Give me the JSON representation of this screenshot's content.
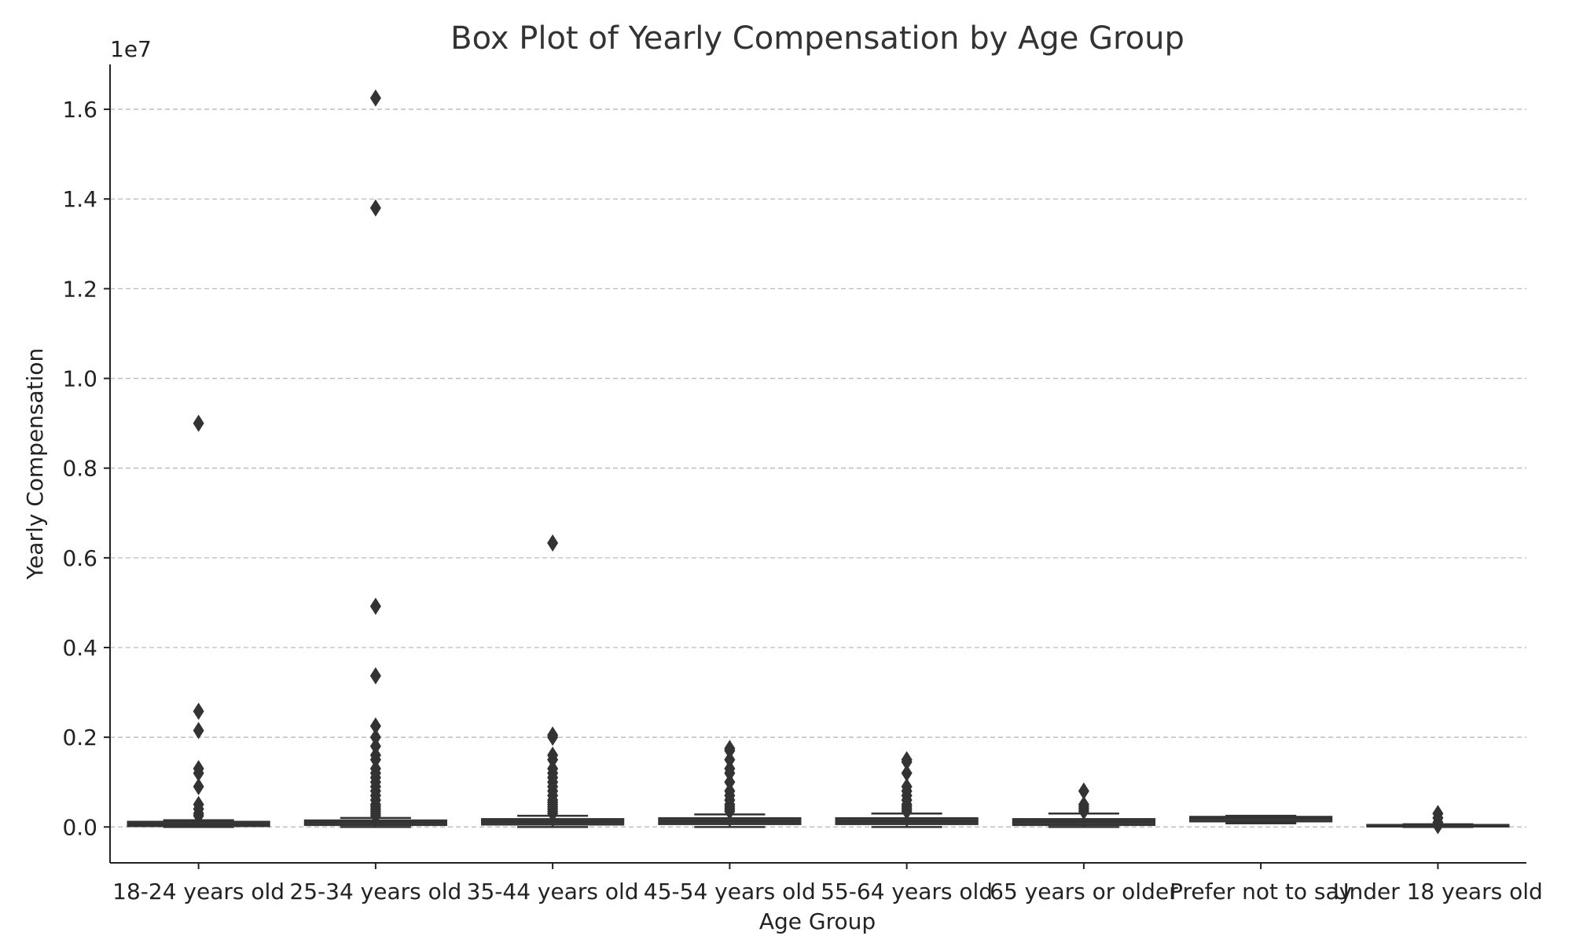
{
  "chart_data": {
    "type": "box",
    "title": "Box Plot of Yearly Compensation by Age Group",
    "xlabel": "Age Group",
    "ylabel": "Yearly Compensation",
    "y_offset_label": "1e7",
    "ylim": [
      -800000,
      17000000
    ],
    "yticks": [
      0,
      2000000,
      4000000,
      6000000,
      8000000,
      10000000,
      12000000,
      14000000,
      16000000
    ],
    "ytick_labels": [
      "0.0",
      "0.2",
      "0.4",
      "0.6",
      "0.8",
      "1.0",
      "1.2",
      "1.4",
      "1.6"
    ],
    "grid": "y",
    "colors": {
      "box": "#3a3a3a",
      "line": "#333333",
      "grid": "#bbbbbb"
    },
    "categories": [
      "18-24 years old",
      "25-34 years old",
      "35-44 years old",
      "45-54 years old",
      "55-64 years old",
      "65 years or older",
      "Prefer not to say",
      "Under 18 years old"
    ],
    "boxes": [
      {
        "whislo": 0,
        "q1": 15000,
        "med": 60000,
        "q3": 120000,
        "whishi": 150000,
        "fliers": [
          9000000,
          2580000,
          2150000,
          1300000,
          1200000,
          900000,
          500000,
          400000,
          300000,
          250000
        ]
      },
      {
        "whislo": 0,
        "q1": 40000,
        "med": 100000,
        "q3": 150000,
        "whishi": 200000,
        "fliers": [
          16250000,
          13800000,
          4920000,
          3370000,
          2250000,
          2000000,
          1800000,
          1600000,
          1500000,
          1300000,
          1200000,
          1100000,
          1000000,
          900000,
          800000,
          700000,
          600000,
          500000,
          450000,
          400000,
          350000,
          300000,
          250000
        ]
      },
      {
        "whislo": 0,
        "q1": 50000,
        "med": 120000,
        "q3": 180000,
        "whishi": 250000,
        "fliers": [
          6330000,
          2050000,
          2000000,
          1600000,
          1500000,
          1300000,
          1200000,
          1100000,
          1000000,
          900000,
          800000,
          700000,
          600000,
          550000,
          500000,
          450000,
          400000,
          350000,
          300000
        ]
      },
      {
        "whislo": 0,
        "q1": 60000,
        "med": 130000,
        "q3": 200000,
        "whishi": 280000,
        "fliers": [
          1750000,
          1700000,
          1500000,
          1300000,
          1200000,
          1000000,
          800000,
          700000,
          600000,
          500000,
          450000,
          400000,
          350000
        ]
      },
      {
        "whislo": 0,
        "q1": 60000,
        "med": 130000,
        "q3": 200000,
        "whishi": 300000,
        "fliers": [
          1500000,
          1450000,
          1200000,
          900000,
          800000,
          700000,
          600000,
          500000,
          450000,
          400000,
          350000
        ]
      },
      {
        "whislo": 0,
        "q1": 40000,
        "med": 120000,
        "q3": 180000,
        "whishi": 300000,
        "fliers": [
          800000,
          500000,
          450000,
          400000,
          350000
        ]
      },
      {
        "whislo": 80000,
        "q1": 120000,
        "med": 200000,
        "q3": 230000,
        "whishi": 250000,
        "fliers": []
      },
      {
        "whislo": 0,
        "q1": 5000,
        "med": 20000,
        "q3": 50000,
        "whishi": 60000,
        "fliers": [
          300000,
          200000,
          100000,
          30000
        ]
      }
    ]
  }
}
